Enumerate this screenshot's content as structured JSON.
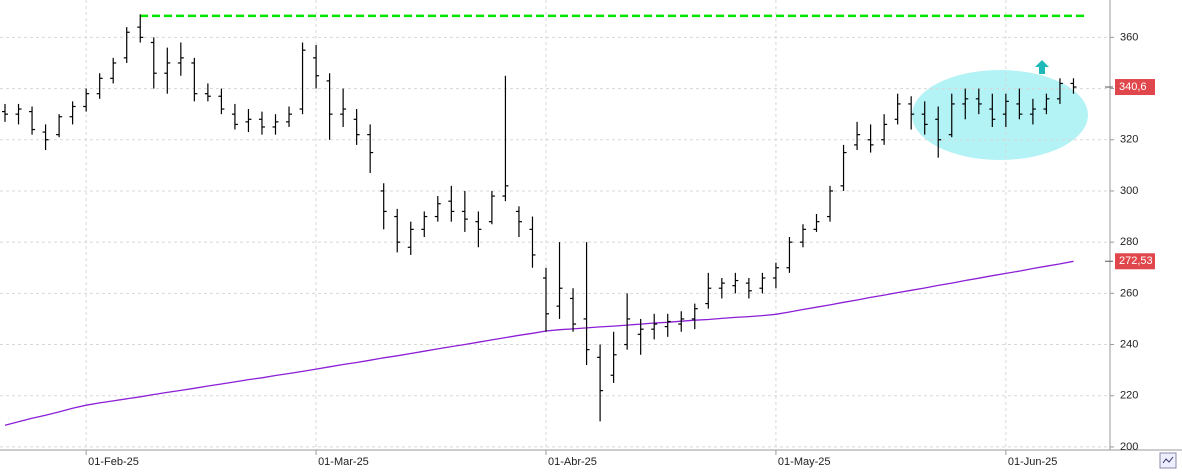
{
  "chart_data": {
    "type": "ohlc",
    "categories": [
      null,
      null,
      null,
      null,
      null,
      null,
      "01-Feb-25",
      null,
      null,
      null,
      null,
      null,
      null,
      null,
      null,
      null,
      null,
      null,
      null,
      null,
      null,
      null,
      null,
      "01-Mar-25",
      null,
      null,
      null,
      null,
      null,
      null,
      null,
      null,
      null,
      null,
      null,
      null,
      null,
      null,
      null,
      null,
      "01-Abr-25",
      null,
      null,
      null,
      null,
      null,
      null,
      null,
      null,
      null,
      null,
      null,
      null,
      null,
      null,
      null,
      null,
      "01-May-25",
      null,
      null,
      null,
      null,
      null,
      null,
      null,
      null,
      null,
      null,
      null,
      null,
      null,
      null,
      null,
      null,
      "01-Jun-25",
      null,
      null,
      null,
      null,
      null,
      null
    ],
    "ylim": [
      198.8,
      374.6
    ],
    "yticks": [
      200,
      220,
      240,
      260,
      280,
      300,
      320,
      340,
      360
    ],
    "grid": true,
    "ohlc": {
      "color": "#000000",
      "open": [
        331,
        330,
        331,
        323,
        322,
        329,
        333,
        338,
        344,
        352,
        364,
        358,
        346,
        350,
        350,
        338,
        337,
        330,
        327,
        328,
        325,
        327,
        332,
        352,
        343,
        330,
        328,
        322,
        300,
        290,
        278,
        285,
        290,
        296,
        292,
        288,
        288,
        298,
        292,
        285,
        266,
        255,
        258,
        250,
        235,
        228,
        240,
        244,
        246,
        247,
        248,
        250,
        256,
        262,
        263,
        264,
        262,
        266,
        270,
        280,
        285,
        290,
        302,
        318,
        320,
        320,
        328,
        334,
        330,
        328,
        322,
        334,
        336,
        332,
        330,
        334,
        330,
        332,
        336,
        342
      ],
      "high": [
        334,
        334,
        333,
        326,
        330,
        335,
        340,
        346,
        352,
        364,
        369,
        360,
        356,
        358,
        352,
        342,
        340,
        334,
        332,
        331,
        330,
        333,
        358,
        357,
        346,
        340,
        332,
        326,
        303,
        293,
        288,
        292,
        298,
        302,
        300,
        292,
        300,
        345,
        294,
        290,
        270,
        280,
        262,
        280,
        240,
        245,
        260,
        250,
        252,
        252,
        253,
        256,
        268,
        266,
        268,
        266,
        268,
        272,
        282,
        287,
        291,
        302,
        318,
        327,
        326,
        330,
        338,
        337,
        335,
        333,
        338,
        340,
        340,
        338,
        338,
        340,
        336,
        338,
        344,
        344
      ],
      "low": [
        327,
        326,
        322,
        316,
        321,
        326,
        331,
        336,
        342,
        350,
        358,
        340,
        338,
        345,
        335,
        335,
        330,
        324,
        323,
        322,
        322,
        325,
        330,
        340,
        320,
        325,
        318,
        307,
        285,
        276,
        275,
        282,
        288,
        288,
        284,
        278,
        287,
        296,
        282,
        270,
        245,
        250,
        245,
        232,
        210,
        225,
        238,
        236,
        242,
        243,
        245,
        246,
        254,
        258,
        260,
        258,
        260,
        262,
        268,
        278,
        284,
        288,
        300,
        316,
        315,
        318,
        326,
        324,
        322,
        313,
        321,
        328,
        330,
        325,
        325,
        328,
        326,
        330,
        334,
        338
      ],
      "close": [
        330,
        332,
        324,
        320,
        329,
        333,
        338,
        344,
        350,
        362,
        360,
        346,
        350,
        352,
        338,
        337,
        332,
        326,
        328,
        325,
        327,
        330,
        355,
        345,
        330,
        332,
        322,
        315,
        292,
        280,
        285,
        290,
        295,
        292,
        289,
        285,
        298,
        302,
        288,
        275,
        252,
        262,
        248,
        238,
        222,
        236,
        250,
        246,
        248,
        249,
        250,
        254,
        262,
        264,
        265,
        261,
        266,
        270,
        280,
        285,
        288,
        300,
        315,
        322,
        318,
        326,
        334,
        330,
        326,
        320,
        334,
        336,
        334,
        328,
        335,
        330,
        332,
        336,
        342,
        340.6
      ],
      "last_label": "340,6"
    },
    "moving_average": {
      "color": "#8b1fd6",
      "values": [
        208.5,
        209.8,
        211.2,
        212.4,
        213.7,
        215.1,
        216.3,
        217.2,
        218.0,
        218.8,
        219.6,
        220.5,
        221.3,
        222.1,
        222.9,
        223.8,
        224.6,
        225.4,
        226.3,
        227.0,
        227.9,
        228.7,
        229.5,
        230.4,
        231.3,
        232.2,
        233.0,
        233.9,
        234.8,
        235.6,
        236.5,
        237.4,
        238.3,
        239.2,
        240.0,
        240.9,
        241.8,
        242.7,
        243.6,
        244.4,
        245.3,
        245.8,
        246.1,
        246.5,
        246.9,
        247.2,
        247.6,
        248.0,
        248.4,
        248.7,
        249.1,
        249.5,
        249.8,
        250.2,
        250.6,
        250.9,
        251.3,
        251.8,
        252.7,
        253.7,
        254.6,
        255.5,
        256.5,
        257.4,
        258.4,
        259.3,
        260.3,
        261.2,
        262.1,
        263.1,
        264.0,
        265.0,
        265.9,
        266.9,
        267.8,
        268.7,
        269.7,
        270.6,
        271.5,
        272.53
      ],
      "last_label": "272,53"
    },
    "resistance": {
      "value": 368.4,
      "color": "#00e600"
    }
  }
}
